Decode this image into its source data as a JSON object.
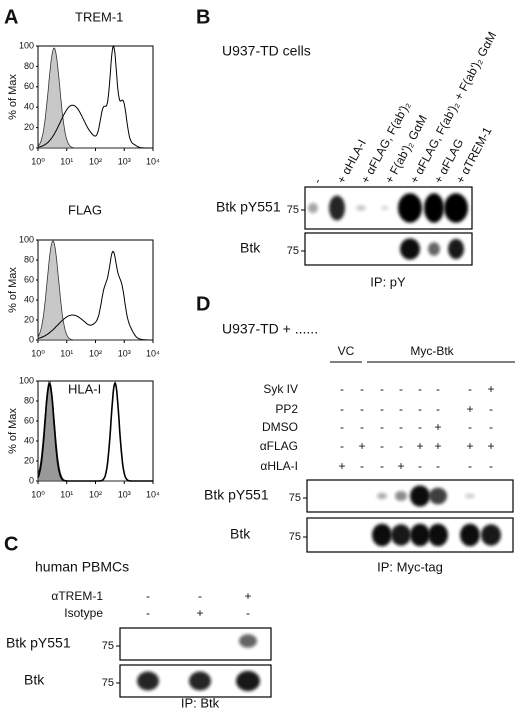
{
  "panels": {
    "A": {
      "letter": "A",
      "y_label": "% of Max",
      "yticks": [
        "0",
        "20",
        "40",
        "60",
        "80",
        "100"
      ],
      "xticks": [
        "10⁰",
        "10¹",
        "10²",
        "10³",
        "10⁴"
      ],
      "plots": [
        {
          "title": "TREM-1"
        },
        {
          "title": "FLAG"
        },
        {
          "title": "HLA-I"
        }
      ]
    },
    "B": {
      "letter": "B",
      "title": "U937-TD cells",
      "lanes": [
        "-",
        "+ αHLA-I",
        "+ αFLAG, F(ab')₂",
        "+ F(ab')₂ GαM",
        "+ αFLAG, F(ab')₂ + F(ab')₂ GαM",
        "+ αFLAG",
        "+ αTREM-1"
      ],
      "blots": [
        {
          "label": "Btk pY551",
          "marker": "75"
        },
        {
          "label": "Btk",
          "marker": "75"
        }
      ],
      "footer": "IP: pY"
    },
    "C": {
      "letter": "C",
      "title": "human PBMCs",
      "rows": [
        {
          "label": "αTREM-1",
          "cells": [
            "-",
            "-",
            "+"
          ]
        },
        {
          "label": "Isotype",
          "cells": [
            "-",
            "+",
            "-"
          ]
        }
      ],
      "blots": [
        {
          "label": "Btk pY551",
          "marker": "75"
        },
        {
          "label": "Btk",
          "marker": "75"
        }
      ],
      "footer": "IP: Btk"
    },
    "D": {
      "letter": "D",
      "title": "U937-TD + ......",
      "groups": [
        "VC",
        "Myc-Btk"
      ],
      "rows": [
        {
          "label": "Syk IV",
          "cells": [
            "-",
            "-",
            "-",
            "-",
            "-",
            "-",
            "-",
            "+"
          ]
        },
        {
          "label": "PP2",
          "cells": [
            "-",
            "-",
            "-",
            "-",
            "-",
            "-",
            "+",
            "-"
          ]
        },
        {
          "label": "DMSO",
          "cells": [
            "-",
            "-",
            "-",
            "-",
            "-",
            "+",
            "-",
            "-"
          ]
        },
        {
          "label": "αFLAG",
          "cells": [
            "-",
            "+",
            "-",
            "-",
            "+",
            "+",
            "+",
            "+"
          ]
        },
        {
          "label": "αHLA-I",
          "cells": [
            "+",
            "-",
            "-",
            "+",
            "-",
            "-",
            "-",
            "-"
          ]
        }
      ],
      "blots": [
        {
          "label": "Btk pY551",
          "marker": "75"
        },
        {
          "label": "Btk",
          "marker": "75"
        }
      ],
      "footer": "IP: Myc-tag"
    }
  }
}
